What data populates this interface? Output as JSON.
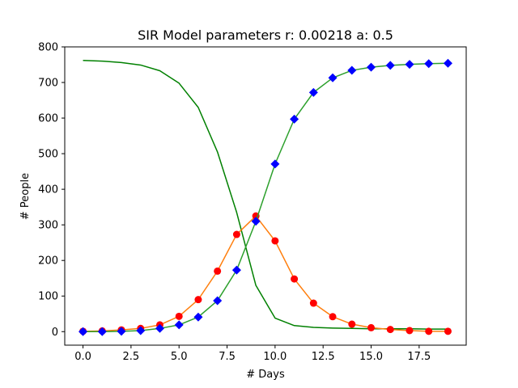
{
  "chart_data": {
    "type": "line",
    "title": "SIR Model parameters r: 0.00218 a: 0.5",
    "xlabel": "# Days",
    "ylabel": "# People",
    "xlim": [
      -0.95,
      19.95
    ],
    "ylim": [
      -38,
      800
    ],
    "x_ticks": [
      0,
      2.5,
      5,
      7.5,
      10,
      12.5,
      15,
      17.5
    ],
    "x_tick_labels": [
      "0.0",
      "2.5",
      "5.0",
      "7.5",
      "10.0",
      "12.5",
      "15.0",
      "17.5"
    ],
    "y_ticks": [
      0,
      100,
      200,
      300,
      400,
      500,
      600,
      700,
      800
    ],
    "y_tick_labels": [
      "0",
      "100",
      "200",
      "300",
      "400",
      "500",
      "600",
      "700",
      "800"
    ],
    "grid": false,
    "x": [
      0,
      1,
      2,
      3,
      4,
      5,
      6,
      7,
      8,
      9,
      10,
      11,
      12,
      13,
      14,
      15,
      16,
      17,
      18,
      19
    ],
    "series": [
      {
        "color": "#008000",
        "marker": "none",
        "values": [
          762,
          760,
          756,
          749,
          733,
          698,
          630,
          505,
          335,
          130,
          38,
          17,
          12,
          10,
          9,
          8,
          8,
          8,
          7,
          7
        ]
      },
      {
        "color": "#ff7f0e",
        "marker": "circle",
        "marker_color": "#ff0000",
        "values": [
          1,
          2,
          5,
          9,
          19,
          43,
          90,
          170,
          273,
          325,
          255,
          148,
          80,
          42,
          21,
          11,
          6,
          3,
          1,
          1
        ]
      },
      {
        "color": "#2ca02c",
        "marker": "diamond",
        "marker_color": "#0000ff",
        "values": [
          0,
          0,
          1,
          3,
          9,
          19,
          41,
          87,
          173,
          310,
          471,
          597,
          672,
          713,
          734,
          743,
          748,
          751,
          753,
          754
        ]
      }
    ]
  }
}
